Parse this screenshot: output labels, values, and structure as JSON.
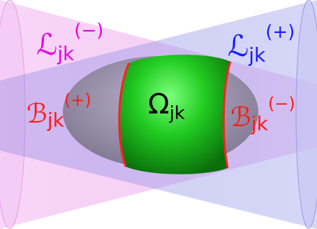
{
  "labels": {
    "L_minus": {
      "base": "ℒ",
      "sub": "jk",
      "sup": "(−)"
    },
    "L_plus": {
      "base": "ℒ",
      "sub": "jk",
      "sup": "(+)"
    },
    "B_plus": {
      "base": "ℬ",
      "sub": "jk",
      "sup": "(+)"
    },
    "B_minus": {
      "base": "ℬ",
      "sub": "jk",
      "sup": "(−)"
    },
    "Omega": {
      "base": "Ω",
      "sub": "jk"
    }
  },
  "colors": {
    "magenta_label": "#e600e6",
    "blue_label": "#1a1aff",
    "red_label": "#ff1a1a",
    "black_label": "#000000",
    "green_region": "#22cc22",
    "magenta_cone": "#e060e0",
    "blue_cone": "#6060e0",
    "red_boundary": "#ff2020"
  }
}
